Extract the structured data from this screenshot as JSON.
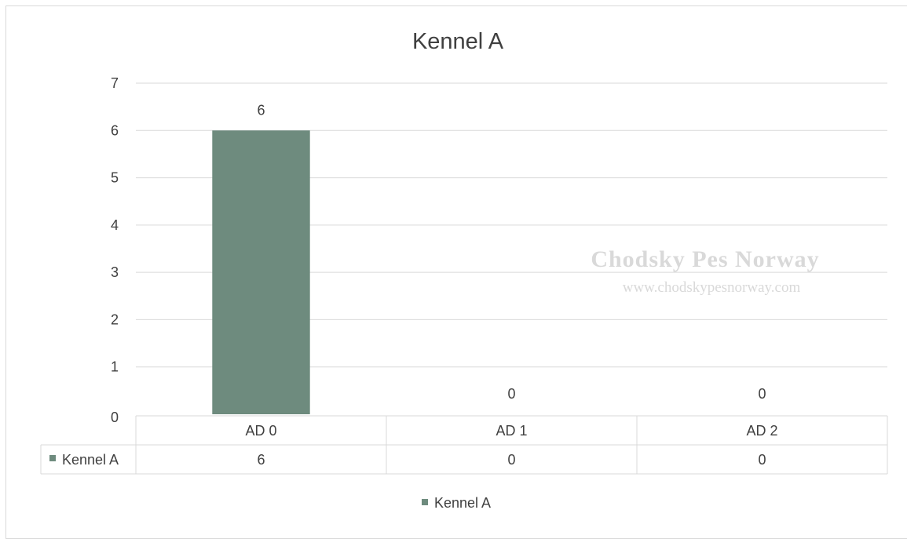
{
  "chart_data": {
    "type": "bar",
    "title": "Kennel A",
    "categories": [
      "AD 0",
      "AD 1",
      "AD 2"
    ],
    "series": [
      {
        "name": "Kennel A",
        "values": [
          6,
          0,
          0
        ],
        "color": "#6e8b7e"
      }
    ],
    "y_ticks": [
      0,
      1,
      2,
      3,
      4,
      5,
      6,
      7
    ],
    "ylim": [
      0,
      7
    ],
    "grid": true,
    "data_labels": true,
    "data_table": true,
    "legend_position": "bottom"
  },
  "watermark": {
    "title": "Chodsky Pes Norway",
    "url": "www.chodskypesnorway.com"
  },
  "colors": {
    "bar": "#6e8b7e",
    "gridline": "#d9d9d9",
    "text": "#404040",
    "watermark": "#d9d9d9"
  }
}
